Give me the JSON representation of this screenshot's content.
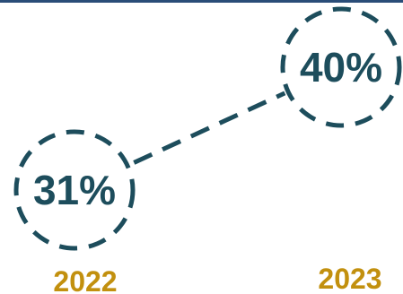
{
  "chart_data": {
    "type": "line",
    "categories": [
      "2022",
      "2023"
    ],
    "series": [
      {
        "values": [
          31,
          40
        ]
      }
    ],
    "value_labels": [
      "31%",
      "40%"
    ],
    "unit": "%",
    "style": {
      "line": "dashed",
      "markers": "dashed circles",
      "grid": false,
      "legend": "none"
    }
  },
  "colors": {
    "primary": "#1d4d5c",
    "year_label": "#c2900e",
    "top_rule": "#2a4d78",
    "background": "#ffffff"
  }
}
